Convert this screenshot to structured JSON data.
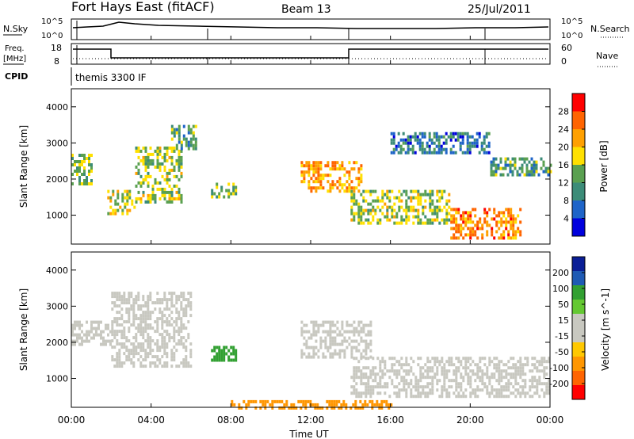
{
  "header": {
    "station": "Fort Hays East (fitACF)",
    "beam": "Beam 13",
    "date": "25/Jul/2011"
  },
  "status_panel": {
    "nsky_label": "N.Sky",
    "nsky_ticks": [
      "10^5",
      "10^0"
    ],
    "nsearch_label": "N.Search",
    "nsearch_ticks": [
      "10^5",
      "10^0"
    ],
    "freq_label": "Freq.",
    "freq_unit": "[MHz]",
    "freq_ticks": [
      "18",
      "8"
    ],
    "nave_label": "Nave",
    "nave_ticks": [
      "60",
      "0"
    ],
    "cpid_label": "CPID",
    "cpid_text": "themis 3300 IF"
  },
  "colors": {
    "power_scale": [
      "#0000dd",
      "#1e64c8",
      "#3c8c78",
      "#5aa050",
      "#ffe000",
      "#ffa000",
      "#ff6400",
      "#ff0000"
    ],
    "velocity_scale": [
      "#ff0000",
      "#ff6400",
      "#ff9600",
      "#ffc800",
      "#c8c8c0",
      "#c8c8c0",
      "#64c832",
      "#32a032",
      "#1e5ab4",
      "#0a1e96"
    ]
  },
  "chart_data": [
    {
      "type": "heatmap",
      "title": "",
      "xlabel": "Time UT",
      "ylabel": "Slant Range [km]",
      "x_ticks": [
        "00:00",
        "04:00",
        "08:00",
        "12:00",
        "16:00",
        "20:00",
        "00:00"
      ],
      "xlim_hours": [
        0,
        24
      ],
      "ylim": [
        200,
        4500
      ],
      "y_ticks": [
        1000,
        2000,
        3000,
        4000
      ],
      "colorbar": {
        "label": "Power [dB]",
        "ticks": [
          4,
          8,
          12,
          16,
          20,
          24,
          28
        ],
        "range": [
          0,
          32
        ]
      },
      "echo_regions": [
        {
          "t": [
            0.0,
            1.0
          ],
          "r": [
            1900,
            2700
          ],
          "value": 14
        },
        {
          "t": [
            1.8,
            3.2
          ],
          "r": [
            1000,
            1700
          ],
          "value": 18
        },
        {
          "t": [
            3.2,
            5.5
          ],
          "r": [
            1400,
            2900
          ],
          "value": 16
        },
        {
          "t": [
            5.0,
            6.2
          ],
          "r": [
            2800,
            3500
          ],
          "value": 12
        },
        {
          "t": [
            7.0,
            8.3
          ],
          "r": [
            1500,
            1900
          ],
          "value": 14
        },
        {
          "t": [
            11.5,
            14.5
          ],
          "r": [
            1700,
            2500
          ],
          "value": 22
        },
        {
          "t": [
            14.0,
            19.0
          ],
          "r": [
            800,
            1700
          ],
          "value": 16
        },
        {
          "t": [
            19.0,
            22.5
          ],
          "r": [
            400,
            1200
          ],
          "value": 24
        },
        {
          "t": [
            16.0,
            21.0
          ],
          "r": [
            2700,
            3300
          ],
          "value": 8
        },
        {
          "t": [
            21.0,
            24.0
          ],
          "r": [
            2100,
            2600
          ],
          "value": 12
        }
      ]
    },
    {
      "type": "heatmap",
      "title": "",
      "xlabel": "Time UT",
      "ylabel": "Slant Range [km]",
      "x_ticks": [
        "00:00",
        "04:00",
        "08:00",
        "12:00",
        "16:00",
        "20:00",
        "00:00"
      ],
      "xlim_hours": [
        0,
        24
      ],
      "ylim": [
        200,
        4500
      ],
      "y_ticks": [
        1000,
        2000,
        3000,
        4000
      ],
      "colorbar": {
        "label": "Velocity [m s^-1]",
        "ticks": [
          "200",
          "100",
          "50",
          "15",
          "-15",
          "-50",
          "-100",
          "-200"
        ]
      },
      "echo_regions": [
        {
          "t": [
            0.0,
            2.0
          ],
          "r": [
            1900,
            2600
          ],
          "value": 0
        },
        {
          "t": [
            2.0,
            6.0
          ],
          "r": [
            1300,
            3400
          ],
          "value": 0
        },
        {
          "t": [
            7.0,
            8.3
          ],
          "r": [
            1500,
            1900
          ],
          "value": 60
        },
        {
          "t": [
            11.5,
            15.0
          ],
          "r": [
            1600,
            2600
          ],
          "value": 0
        },
        {
          "t": [
            14.0,
            24.0
          ],
          "r": [
            500,
            1600
          ],
          "value": 0
        },
        {
          "t": [
            8.0,
            16.0
          ],
          "r": [
            200,
            400
          ],
          "value": -60
        }
      ]
    }
  ]
}
